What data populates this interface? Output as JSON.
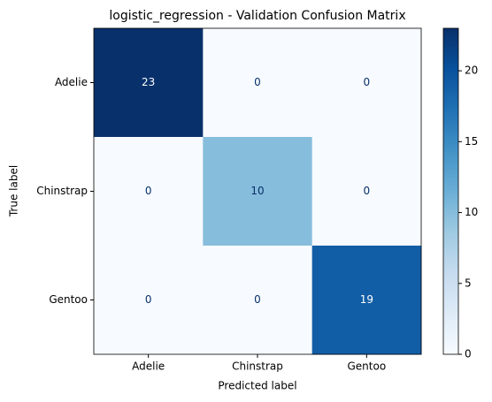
{
  "chart_data": {
    "type": "heatmap",
    "title": "logistic_regression - Validation Confusion Matrix",
    "xlabel": "Predicted label",
    "ylabel": "True label",
    "x_categories": [
      "Adelie",
      "Chinstrap",
      "Gentoo"
    ],
    "y_categories": [
      "Adelie",
      "Chinstrap",
      "Gentoo"
    ],
    "values": [
      [
        23,
        0,
        0
      ],
      [
        0,
        10,
        0
      ],
      [
        0,
        0,
        19
      ]
    ],
    "colormap": "Blues",
    "zlim": [
      0,
      23
    ],
    "colorbar_ticks": [
      0,
      5,
      10,
      15,
      20
    ]
  }
}
